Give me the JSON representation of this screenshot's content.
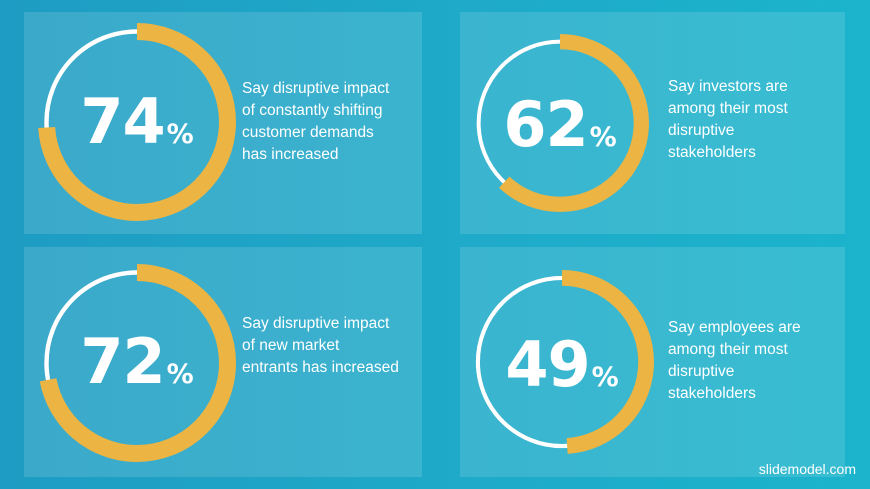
{
  "stats": [
    {
      "value": "74",
      "symbol": "%",
      "fraction": 0.74,
      "caption": "Say disruptive impact\nof constantly shifting\ncustomer demands\nhas increased"
    },
    {
      "value": "62",
      "symbol": "%",
      "fraction": 0.62,
      "caption": "Say investors are\namong their most\ndisruptive\nstakeholders"
    },
    {
      "value": "72",
      "symbol": "%",
      "fraction": 0.72,
      "caption": "Say disruptive impact\nof new market\nentrants has increased"
    },
    {
      "value": "49",
      "symbol": "%",
      "fraction": 0.49,
      "caption": "Say employees are\namong their most\ndisruptive\nstakeholders"
    }
  ],
  "footer": "slidemodel.com",
  "colors": {
    "progress": "#EBB443",
    "track": "#FFFFFF",
    "text": "#FFFFFF"
  }
}
